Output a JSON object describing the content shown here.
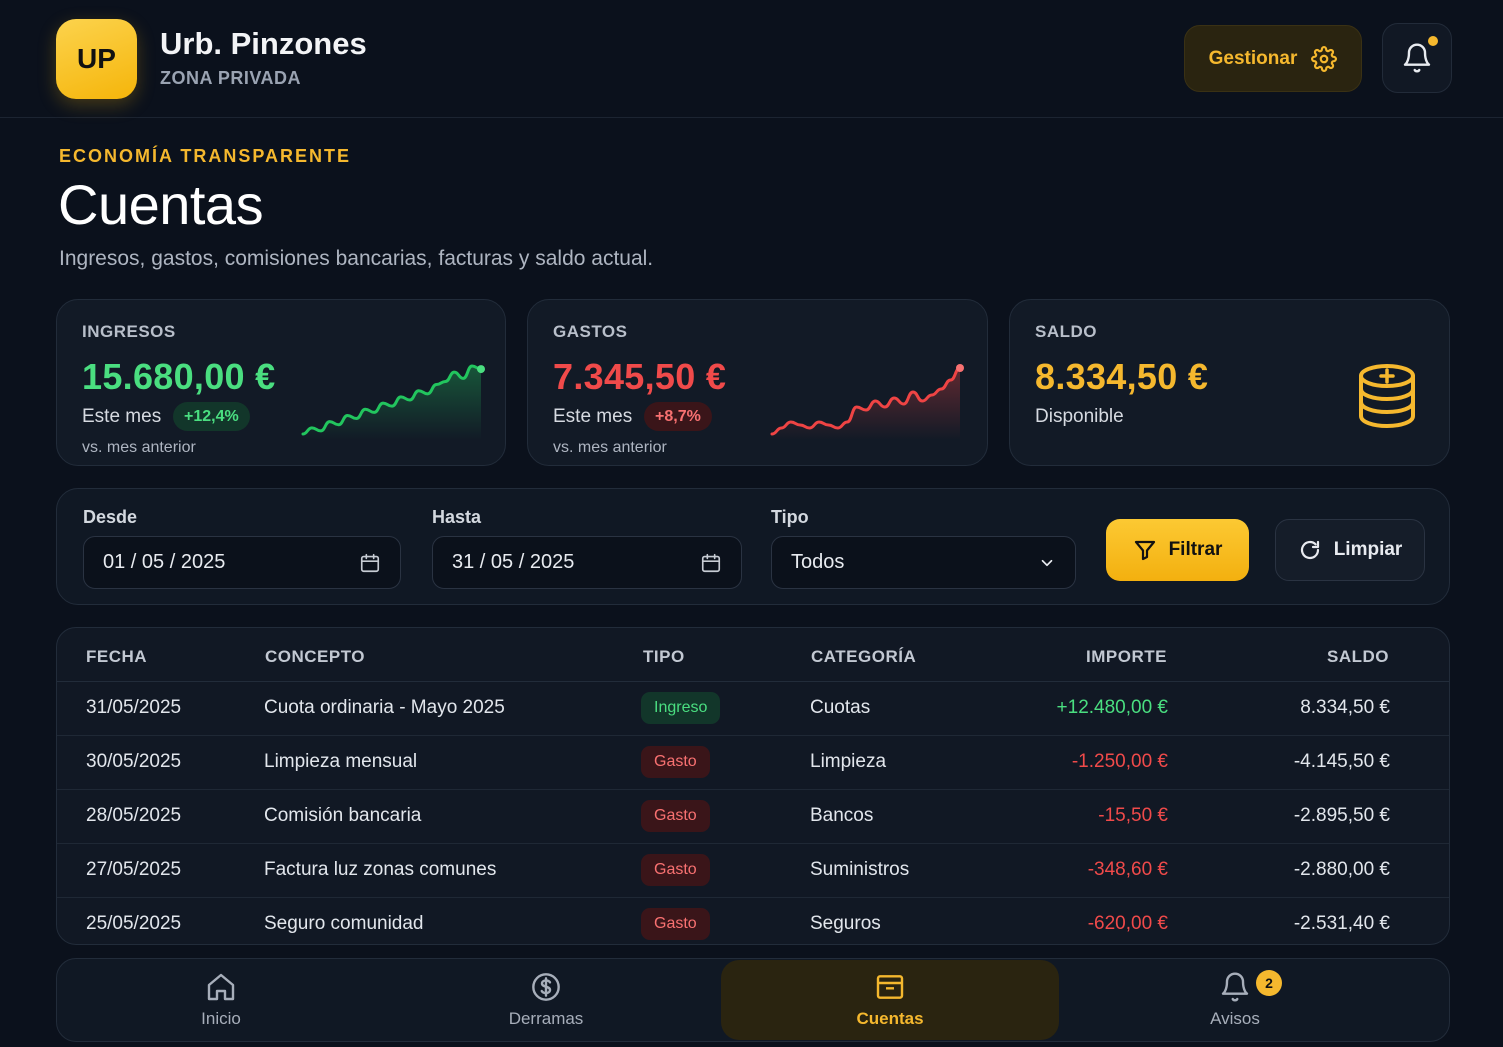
{
  "header": {
    "logo_text": "UP",
    "app_name": "Urb. Pinzones",
    "app_subtitle": "ZONA PRIVADA",
    "manage_label": "Gestionar"
  },
  "page": {
    "eyebrow": "ECONOMÍA TRANSPARENTE",
    "title": "Cuentas",
    "description": "Ingresos, gastos, comisiones bancarias, facturas y saldo actual."
  },
  "summary": {
    "income": {
      "label": "INGRESOS",
      "value": "15.680,00 €",
      "period": "Este mes",
      "change": "+12,4%",
      "compare": "vs. mes anterior",
      "trend": [
        1,
        3,
        2,
        5,
        4,
        7,
        6,
        9,
        8,
        11,
        10,
        13,
        12,
        15,
        14,
        17,
        18,
        21,
        19,
        23,
        22
      ]
    },
    "expenses": {
      "label": "GASTOS",
      "value": "7.345,50 €",
      "period": "Este mes",
      "change": "+8,7%",
      "compare": "vs. mes anterior",
      "trend": [
        1,
        3,
        5,
        4,
        3,
        5,
        4,
        3,
        5,
        10,
        9,
        12,
        10,
        13,
        11,
        15,
        12,
        14,
        16,
        19,
        23
      ]
    },
    "balance": {
      "label": "SALDO",
      "value": "8.334,50 €",
      "caption": "Disponible"
    }
  },
  "filters": {
    "from_label": "Desde",
    "from_value": "01 / 05 / 2025",
    "to_label": "Hasta",
    "to_value": "31 / 05 / 2025",
    "type_label": "Tipo",
    "type_value": "Todos",
    "filter_button": "Filtrar",
    "clear_button": "Limpiar"
  },
  "table": {
    "headers": [
      "FECHA",
      "CONCEPTO",
      "TIPO",
      "CATEGORÍA",
      "IMPORTE",
      "SALDO"
    ],
    "rows": [
      {
        "date": "31/05/2025",
        "concept": "Cuota ordinaria - Mayo 2025",
        "type": "Ingreso",
        "category": "Cuotas",
        "amount": "+12.480,00 €",
        "balance": "8.334,50 €"
      },
      {
        "date": "30/05/2025",
        "concept": "Limpieza mensual",
        "type": "Gasto",
        "category": "Limpieza",
        "amount": "-1.250,00 €",
        "balance": "-4.145,50 €"
      },
      {
        "date": "28/05/2025",
        "concept": "Comisión bancaria",
        "type": "Gasto",
        "category": "Bancos",
        "amount": "-15,50 €",
        "balance": "-2.895,50 €"
      },
      {
        "date": "27/05/2025",
        "concept": "Factura luz zonas comunes",
        "type": "Gasto",
        "category": "Suministros",
        "amount": "-348,60 €",
        "balance": "-2.880,00 €"
      },
      {
        "date": "25/05/2025",
        "concept": "Seguro comunidad",
        "type": "Gasto",
        "category": "Seguros",
        "amount": "-620,00 €",
        "balance": "-2.531,40 €"
      }
    ]
  },
  "nav": {
    "items": [
      {
        "label": "Inicio",
        "icon": "home-icon"
      },
      {
        "label": "Derramas",
        "icon": "dollar-circle-icon"
      },
      {
        "label": "Cuentas",
        "icon": "archive-icon"
      },
      {
        "label": "Avisos",
        "icon": "bell-icon",
        "badge": "2"
      }
    ],
    "active": "Cuentas"
  },
  "colors": {
    "accent": "#f5b82e",
    "positive": "#4ade80",
    "negative": "#f87171",
    "background": "#0b111c"
  }
}
